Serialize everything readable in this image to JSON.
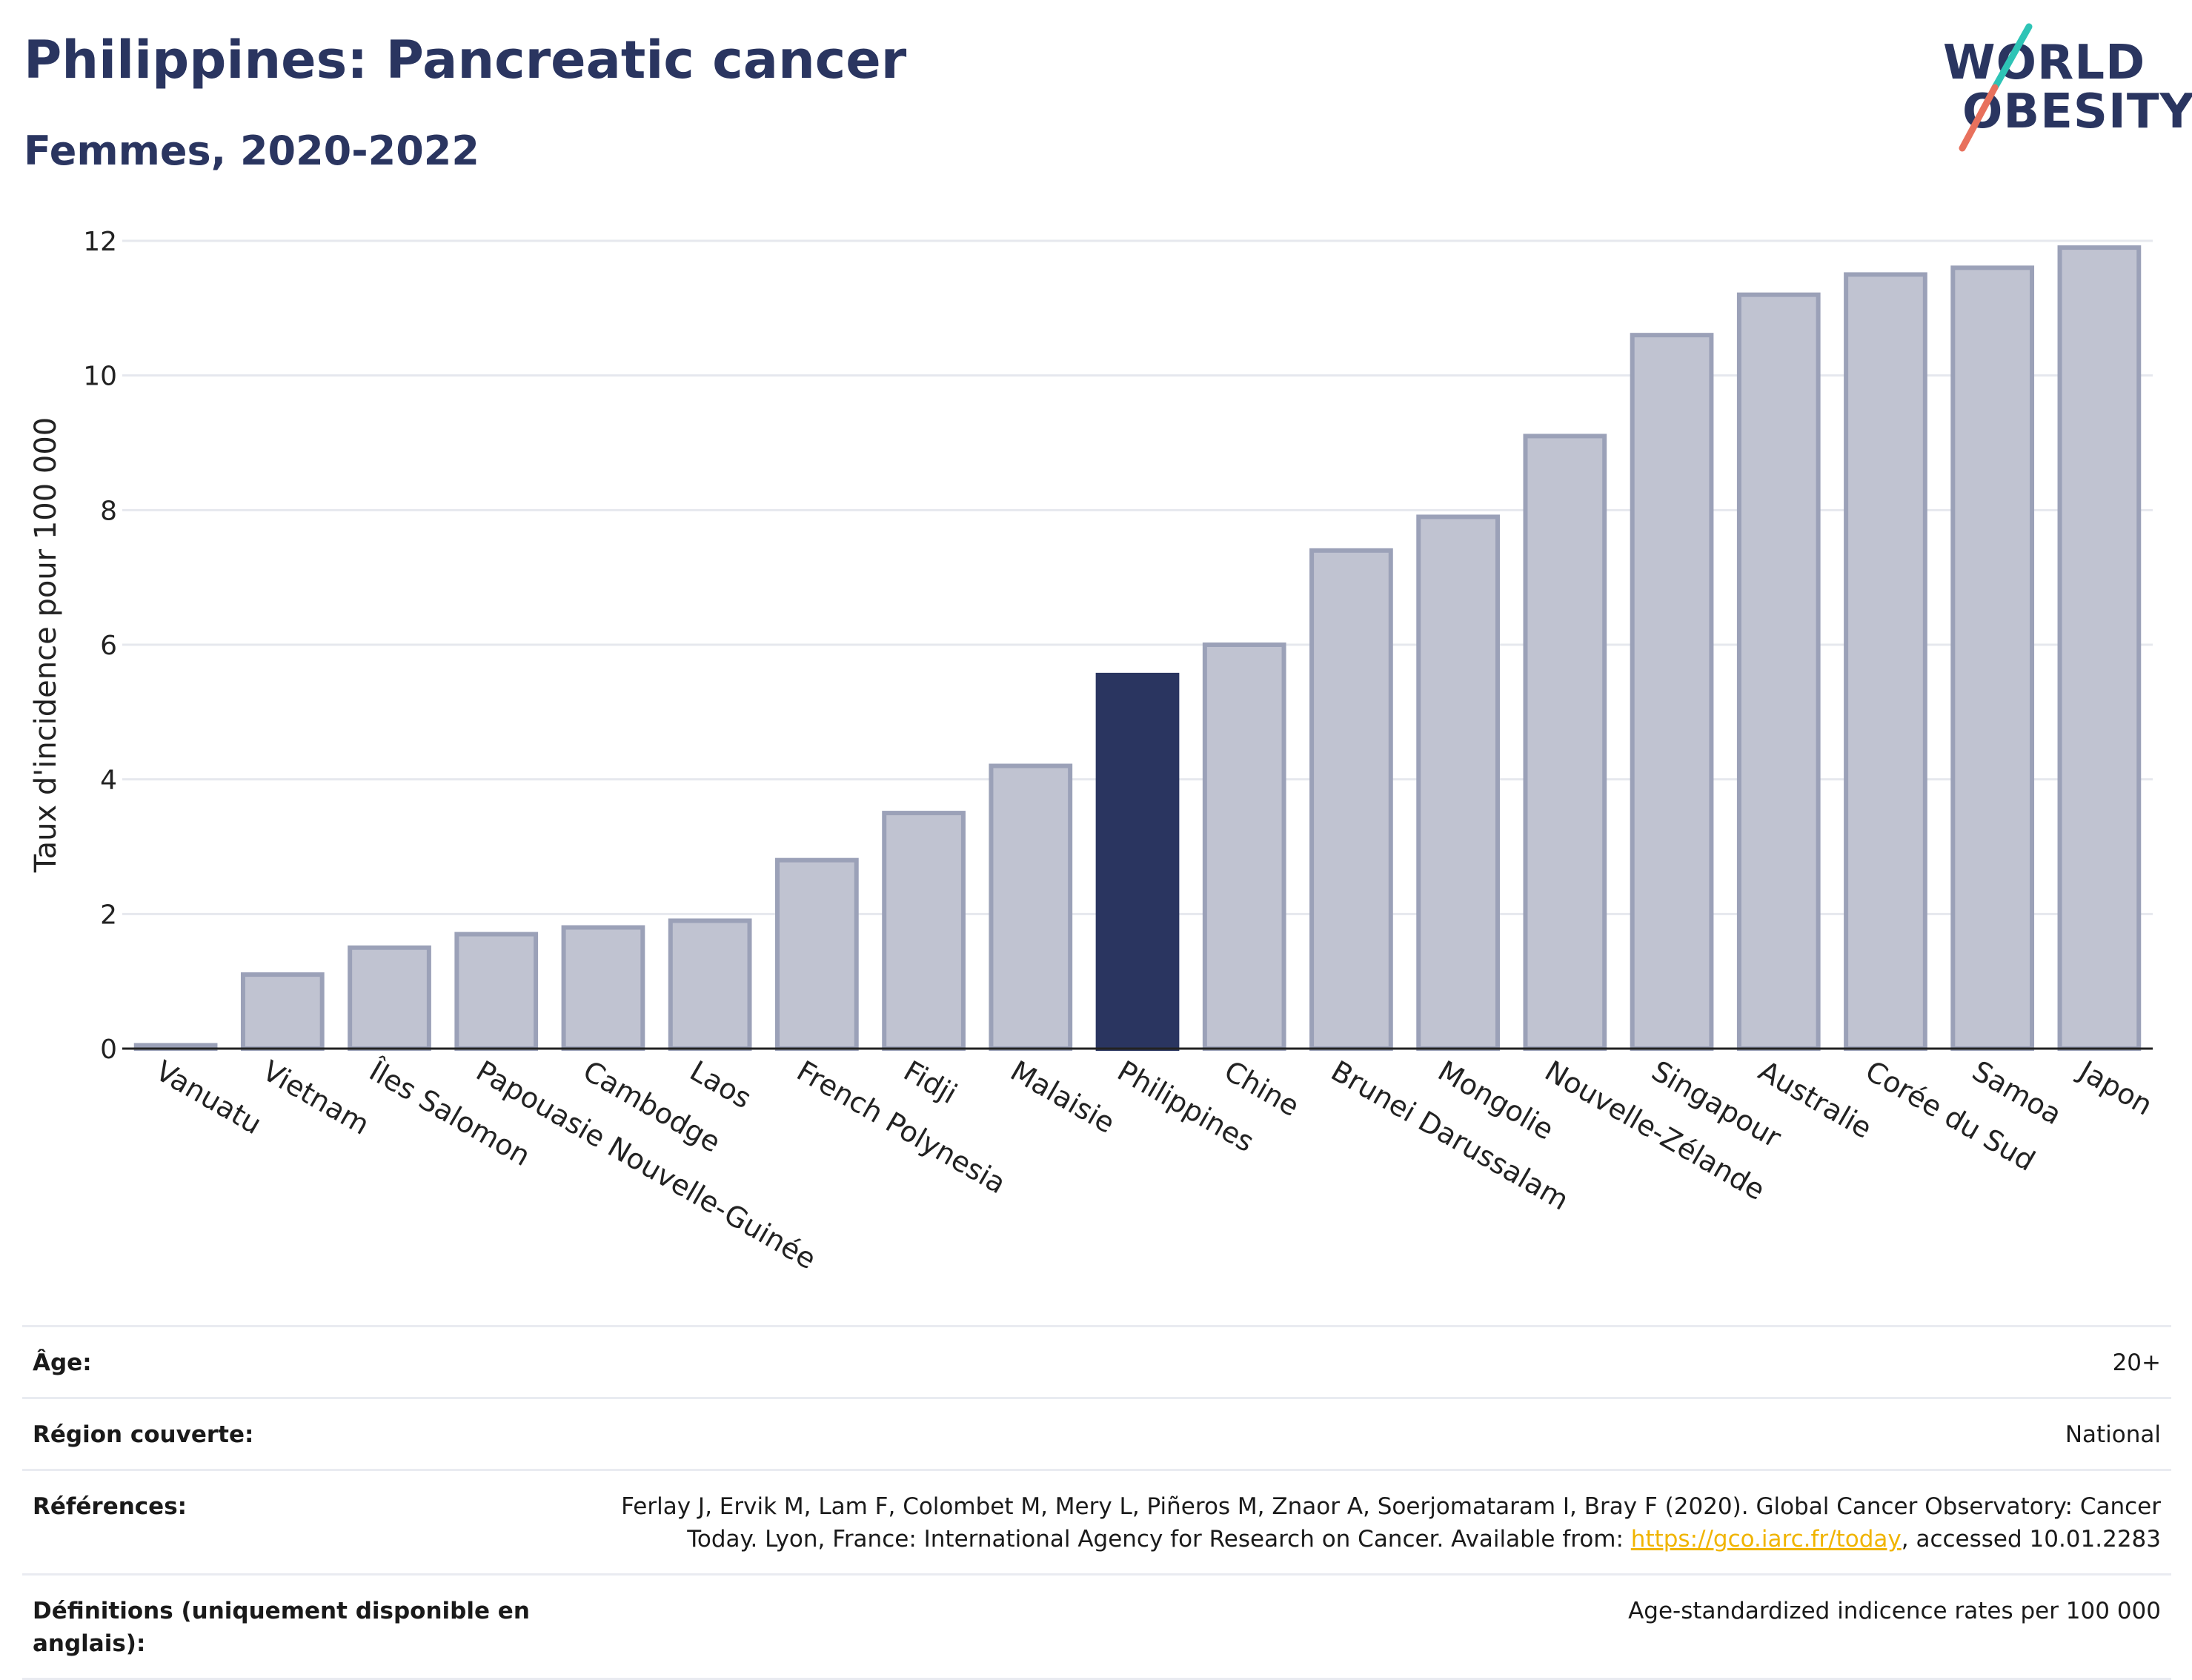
{
  "title": "Philippines: Pancreatic cancer",
  "subtitle": "Femmes, 2020-2022",
  "logo": {
    "line1": "WORLD",
    "line2": "OBESITY"
  },
  "colors": {
    "highlight": "#2a3560",
    "bar": "#c0c3d1",
    "bar_border": "#9ba1b8",
    "accent_teal": "#2ec4b6",
    "accent_red": "#e8715d",
    "link": "#f0b400"
  },
  "chart_data": {
    "type": "bar",
    "ylabel": "Taux d'incidence pour 100 000",
    "ylim": [
      0,
      12
    ],
    "yticks": [
      0,
      2,
      4,
      6,
      8,
      10,
      12
    ],
    "grid": true,
    "highlight": "Philippines",
    "categories": [
      "Vanuatu",
      "Vietnam",
      "Îles Salomon",
      "Papouasie Nouvelle-Guinée",
      "Cambodge",
      "Laos",
      "French Polynesia",
      "Fidji",
      "Malaisie",
      "Philippines",
      "Chine",
      "Brunei Darussalam",
      "Mongolie",
      "Nouvelle-Zélande",
      "Singapour",
      "Australie",
      "Corée du Sud",
      "Samoa",
      "Japon"
    ],
    "values": [
      0.05,
      1.1,
      1.5,
      1.7,
      1.8,
      1.9,
      2.8,
      3.5,
      4.2,
      5.55,
      6.0,
      7.4,
      7.9,
      9.1,
      10.6,
      11.2,
      11.5,
      11.6,
      11.9
    ]
  },
  "details": {
    "age_label": "Âge:",
    "age_value": "20+",
    "region_label": "Région couverte:",
    "region_value": "National",
    "refs_label": "Références:",
    "refs_text": "Ferlay J, Ervik M, Lam F, Colombet M, Mery L, Piñeros M, Znaor A, Soerjomataram I, Bray F (2020). Global Cancer Observatory: Cancer Today. Lyon, France: International Agency for Research on Cancer. Available from:",
    "refs_link": "https://gco.iarc.fr/today",
    "refs_suffix": ", accessed 10.01.2283",
    "defs_label": "Définitions (uniquement disponible en anglais):",
    "defs_value": "Age-standardized indicence rates per 100 000"
  }
}
